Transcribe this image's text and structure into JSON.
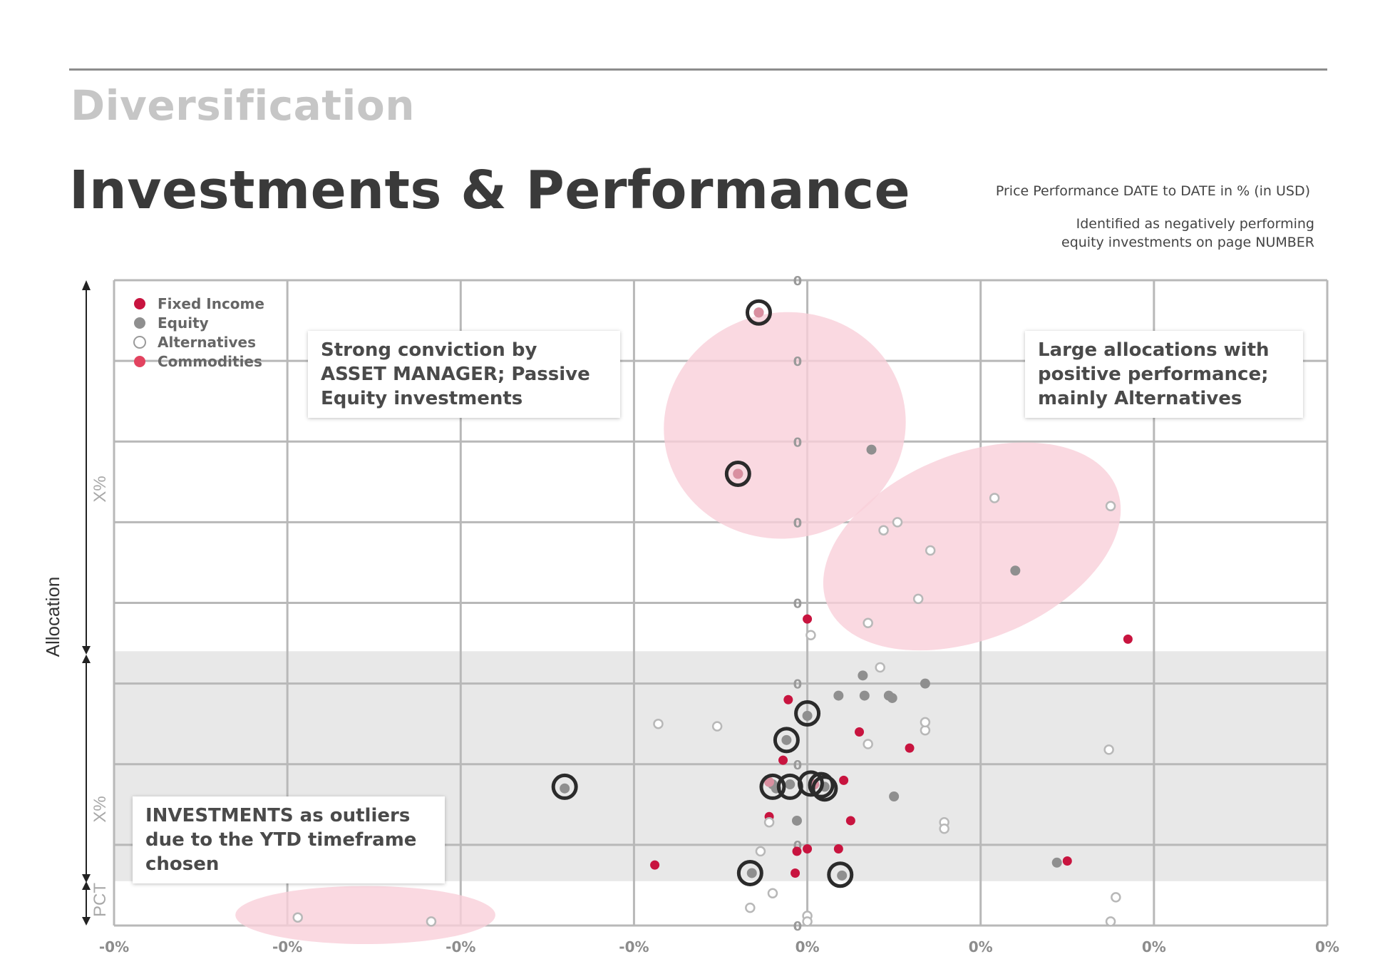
{
  "header": {
    "kicker": "Diversification",
    "title": "Investments & Performance",
    "note_line1": "Price Performance DATE to DATE in % (in USD)",
    "note_line2a": "Identified as negatively performing",
    "note_line2b": "equity investments on page NUMBER"
  },
  "annotations": {
    "top_left": [
      "Strong conviction by",
      "ASSET MANAGER; Passive",
      "Equity investments"
    ],
    "top_right": [
      "Large allocations with",
      "positive performance;",
      "mainly Alternatives"
    ],
    "bottom_left": [
      "INVESTMENTS as outliers",
      "due to the YTD timeframe",
      "chosen"
    ]
  },
  "chart_data": {
    "type": "scatter",
    "title": "",
    "ylabel": "Allocation",
    "y_band_labels": [
      "X%",
      "X%",
      "PCT"
    ],
    "x_tick_labels": [
      "-0%",
      "-0%",
      "-0%",
      "-0%",
      "0%",
      "0%",
      "0%",
      "0%"
    ],
    "y_tick_labels": [
      "0",
      "0",
      "0",
      "0",
      "0",
      "0",
      "0",
      "0",
      "0"
    ],
    "xlim": [
      -4,
      3
    ],
    "ylim": [
      0,
      8
    ],
    "grid": true,
    "legend_position": "top-left",
    "legend": [
      {
        "name": "Fixed Income",
        "color": "#c8143f",
        "style": "filled"
      },
      {
        "name": "Equity",
        "color": "#8f8f8f",
        "style": "filled"
      },
      {
        "name": "Alternatives",
        "color": "#ffffff",
        "style": "hollow"
      },
      {
        "name": "Commodities",
        "color": "#e2435f",
        "style": "filled"
      }
    ],
    "colors": {
      "highlight": "#f9cfd9",
      "band": "#e8e8e8",
      "grid": "#b8b8b8",
      "ring": "#2b2b2b"
    },
    "highlight_ellipses": [
      {
        "cx": -0.13,
        "cy": 6.2,
        "rx": 0.7,
        "ry": 1.4
      },
      {
        "cx": 0.95,
        "cy": 4.7,
        "rx": 0.9,
        "ry": 1.15
      },
      {
        "cx": -2.55,
        "cy": 0.13,
        "rx": 0.75,
        "ry": 0.36
      }
    ],
    "band_range": [
      0.55,
      3.4
    ],
    "series": [
      {
        "name": "Fixed Income",
        "points": [
          [
            0.0,
            3.8
          ],
          [
            0.02,
            3.6
          ],
          [
            -0.11,
            2.8
          ],
          [
            0.3,
            2.4
          ],
          [
            0.59,
            2.2
          ],
          [
            -0.14,
            2.05
          ],
          [
            0.21,
            1.8
          ],
          [
            -0.22,
            1.35
          ],
          [
            0.25,
            1.3
          ],
          [
            -0.06,
            0.92
          ],
          [
            0.0,
            0.95
          ],
          [
            0.18,
            0.95
          ],
          [
            -0.07,
            0.65
          ],
          [
            -0.88,
            0.75
          ],
          [
            1.5,
            0.8
          ],
          [
            1.85,
            3.55
          ]
        ]
      },
      {
        "name": "Equity",
        "points": [
          [
            -0.28,
            7.6
          ],
          [
            -0.4,
            5.6
          ],
          [
            0.37,
            5.9
          ],
          [
            1.2,
            4.4
          ],
          [
            0.32,
            3.1
          ],
          [
            0.18,
            2.85
          ],
          [
            0.33,
            2.85
          ],
          [
            0.47,
            2.85
          ],
          [
            0.49,
            2.82
          ],
          [
            0.68,
            3.0
          ],
          [
            0.0,
            2.6
          ],
          [
            -0.12,
            2.3
          ],
          [
            -0.18,
            1.7
          ],
          [
            -0.2,
            1.75
          ],
          [
            -0.1,
            1.75
          ],
          [
            0.04,
            1.75
          ],
          [
            0.1,
            1.72
          ],
          [
            -1.4,
            1.7
          ],
          [
            0.5,
            1.6
          ],
          [
            -0.06,
            1.3
          ],
          [
            -0.32,
            0.65
          ],
          [
            0.2,
            0.62
          ],
          [
            1.44,
            0.78
          ]
        ]
      },
      {
        "name": "Alternatives",
        "points": [
          [
            1.08,
            5.3
          ],
          [
            1.75,
            5.2
          ],
          [
            0.44,
            4.9
          ],
          [
            0.52,
            5.0
          ],
          [
            0.71,
            4.65
          ],
          [
            0.64,
            4.05
          ],
          [
            0.35,
            3.75
          ],
          [
            0.42,
            3.2
          ],
          [
            -0.86,
            2.5
          ],
          [
            -0.52,
            2.47
          ],
          [
            0.68,
            2.42
          ],
          [
            0.68,
            2.52
          ],
          [
            0.35,
            2.25
          ],
          [
            1.74,
            2.18
          ],
          [
            -0.22,
            1.28
          ],
          [
            0.79,
            1.28
          ],
          [
            0.79,
            1.2
          ],
          [
            -0.27,
            0.92
          ],
          [
            -0.2,
            0.4
          ],
          [
            -0.33,
            0.22
          ],
          [
            0.0,
            0.12
          ],
          [
            0.0,
            0.05
          ],
          [
            1.78,
            0.35
          ],
          [
            1.75,
            0.05
          ],
          [
            -2.94,
            0.1
          ],
          [
            -2.17,
            0.05
          ],
          [
            0.02,
            3.6
          ]
        ]
      },
      {
        "name": "Commodities",
        "points": [
          [
            -0.28,
            7.6
          ],
          [
            -0.4,
            5.6
          ],
          [
            -0.22,
            1.78
          ],
          [
            0.04,
            1.75
          ]
        ]
      }
    ],
    "ringed_points": [
      [
        -0.28,
        7.6
      ],
      [
        -0.4,
        5.6
      ],
      [
        0.0,
        2.63
      ],
      [
        -0.12,
        2.3
      ],
      [
        -1.4,
        1.72
      ],
      [
        -0.2,
        1.72
      ],
      [
        -0.1,
        1.72
      ],
      [
        0.02,
        1.76
      ],
      [
        0.08,
        1.74
      ],
      [
        0.1,
        1.7
      ],
      [
        -0.33,
        0.65
      ],
      [
        0.19,
        0.63
      ]
    ]
  }
}
